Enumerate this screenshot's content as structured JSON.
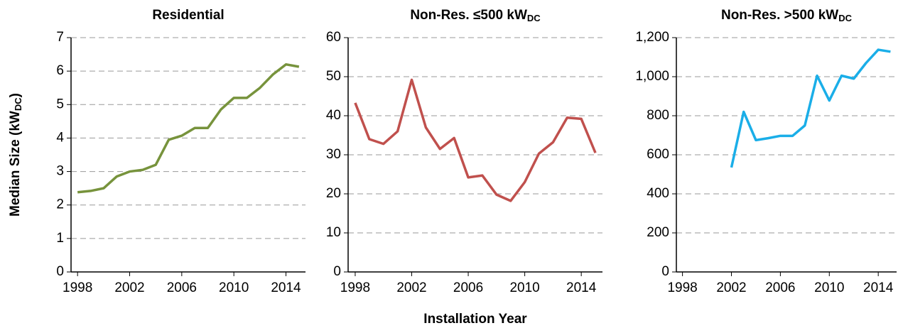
{
  "chart_data": [
    {
      "type": "line",
      "title": "Residential",
      "ylabel_parts": [
        "Median Size (kW",
        "DC",
        ")"
      ],
      "x": [
        1998,
        1999,
        2000,
        2001,
        2002,
        2003,
        2004,
        2005,
        2006,
        2007,
        2008,
        2009,
        2010,
        2011,
        2012,
        2013,
        2014,
        2015
      ],
      "series": [
        {
          "color": "#77933c",
          "values": [
            2.38,
            2.42,
            2.5,
            2.85,
            3.0,
            3.05,
            3.2,
            3.95,
            4.07,
            4.3,
            4.3,
            4.85,
            5.2,
            5.2,
            5.5,
            5.9,
            6.2,
            6.13
          ]
        }
      ],
      "xlim": [
        1997.5,
        2015.5
      ],
      "xticks": [
        1998,
        2002,
        2006,
        2010,
        2014
      ],
      "ylim": [
        0,
        7
      ],
      "yticks": [
        0,
        1,
        2,
        3,
        4,
        5,
        6,
        7
      ],
      "grid": true
    },
    {
      "type": "line",
      "title": "Non-Res. ≤500 kW",
      "title_sub": "DC",
      "xlabel": "Installation Year",
      "x": [
        1998,
        1999,
        2000,
        2001,
        2002,
        2003,
        2004,
        2005,
        2006,
        2007,
        2008,
        2009,
        2010,
        2011,
        2012,
        2013,
        2014,
        2015
      ],
      "series": [
        {
          "color": "#c0504d",
          "values": [
            43.3,
            34,
            32.8,
            36,
            49.2,
            37,
            31.5,
            34.3,
            24.2,
            24.7,
            19.8,
            18.2,
            23,
            30.3,
            33.2,
            39.5,
            39.2,
            30.5
          ]
        }
      ],
      "xlim": [
        1997.5,
        2015.5
      ],
      "xticks": [
        1998,
        2002,
        2006,
        2010,
        2014
      ],
      "ylim": [
        0,
        60
      ],
      "yticks": [
        0,
        10,
        20,
        30,
        40,
        50,
        60
      ],
      "grid": true
    },
    {
      "type": "line",
      "title": "Non-Res. >500 kW",
      "title_sub": "DC",
      "x": [
        2002,
        2003,
        2004,
        2005,
        2006,
        2007,
        2008,
        2009,
        2010,
        2011,
        2012,
        2013,
        2014,
        2015
      ],
      "series": [
        {
          "color": "#1aaee8",
          "values": [
            535,
            820,
            675,
            685,
            697,
            697,
            750,
            1005,
            878,
            1005,
            990,
            1070,
            1138,
            1128
          ]
        }
      ],
      "xlim": [
        1997.5,
        2015.5
      ],
      "xticks": [
        1998,
        2002,
        2006,
        2010,
        2014
      ],
      "ylim": [
        0,
        1200
      ],
      "yticks": [
        0,
        200,
        400,
        600,
        800,
        {
          "value": 1000,
          "label": "1,000"
        },
        {
          "value": 1200,
          "label": "1,200"
        }
      ],
      "grid": true
    }
  ]
}
